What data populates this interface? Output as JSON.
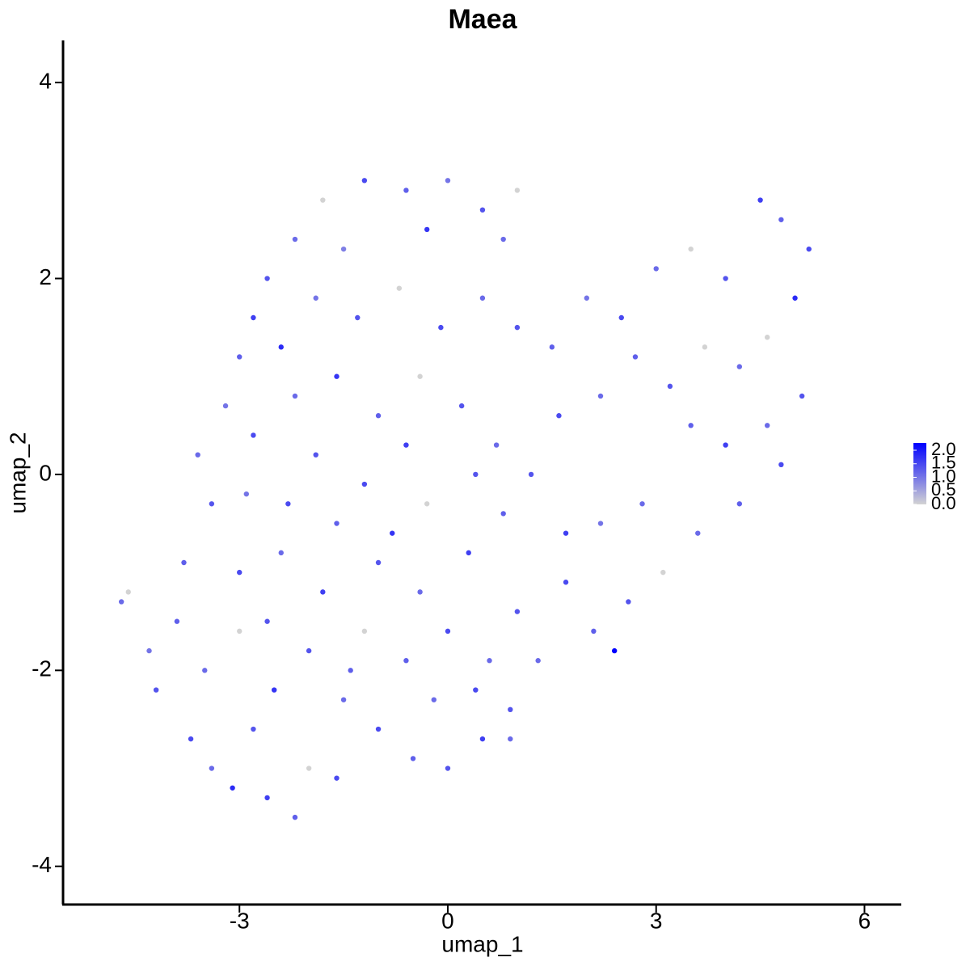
{
  "chart_data": {
    "type": "scatter",
    "title": "Maea",
    "x_label": "umap_1",
    "y_label": "umap_2",
    "xlim": [
      -5.54,
      6.53
    ],
    "ylim": [
      -4.39,
      4.43
    ],
    "xticks": [
      -3,
      0,
      3,
      6
    ],
    "yticks": [
      -4,
      -2,
      0,
      2,
      4
    ],
    "colorscale": [
      "#d3d3d3",
      "#0000ff"
    ],
    "color_lim": [
      0,
      2
    ],
    "color_ticks": [
      {
        "value": 0,
        "label": "0.0"
      },
      {
        "value": 0.5,
        "label": "0.5"
      },
      {
        "value": 1,
        "label": "1.0"
      },
      {
        "value": 1.5,
        "label": "1.5"
      },
      {
        "value": 2,
        "label": "2.0"
      }
    ],
    "x": [
      -2.6,
      -2.2,
      -1.8,
      -1.2,
      -0.6,
      0.0,
      0.5,
      1.0,
      0.8,
      -0.3,
      -1.5,
      -2.8,
      -3.0,
      -2.4,
      -1.9,
      -1.3,
      -0.7,
      -0.1,
      0.5,
      1.0,
      -3.2,
      -2.8,
      -2.2,
      -1.6,
      -1.0,
      -0.4,
      0.2,
      0.7,
      -0.6,
      -1.9,
      1.5,
      2.0,
      2.5,
      3.0,
      3.5,
      4.0,
      4.5,
      4.8,
      5.2,
      5.0,
      4.6,
      4.2,
      3.7,
      3.2,
      2.7,
      2.2,
      1.6,
      3.5,
      4.0,
      4.6,
      5.1,
      4.8,
      4.2,
      3.6,
      3.1,
      2.6,
      2.1,
      2.4,
      1.7,
      2.2,
      2.8,
      1.2,
      1.7,
      1.3,
      0.9,
      -4.7,
      -4.6,
      -4.3,
      -4.2,
      -3.9,
      -3.7,
      -3.4,
      -3.1,
      -2.8,
      -2.6,
      -2.2,
      -2.0,
      -1.6,
      -3.5,
      -3.0,
      -2.5,
      -2.0,
      -1.5,
      -1.0,
      -0.5,
      0.0,
      0.5,
      0.9,
      -3.8,
      -3.4,
      -3.0,
      -2.4,
      -1.8,
      -1.2,
      -0.6,
      0.0,
      0.6,
      1.0,
      -3.6,
      -2.9,
      -2.3,
      -1.6,
      -1.0,
      -0.4,
      0.3,
      0.8,
      -1.2,
      -0.3,
      0.4,
      -0.8,
      -2.6,
      -1.4,
      -0.2,
      0.4
    ],
    "values": [
      2.0,
      2.4,
      2.8,
      3.0,
      2.9,
      3.0,
      2.7,
      2.9,
      2.4,
      2.5,
      2.3,
      1.6,
      1.2,
      1.3,
      1.8,
      1.6,
      1.9,
      1.5,
      1.8,
      1.5,
      0.7,
      0.4,
      0.8,
      1.0,
      0.6,
      1.0,
      0.7,
      0.3,
      0.3,
      0.2,
      1.3,
      1.8,
      1.6,
      2.1,
      2.3,
      2.0,
      2.8,
      2.6,
      2.3,
      1.8,
      1.4,
      1.1,
      1.3,
      0.9,
      1.2,
      0.8,
      0.6,
      0.5,
      0.3,
      0.5,
      0.8,
      0.1,
      -0.3,
      -0.6,
      -1.0,
      -1.3,
      -1.6,
      -1.8,
      -1.1,
      -0.5,
      -0.3,
      0.0,
      -0.6,
      -1.9,
      -2.4,
      -1.3,
      -1.2,
      -1.8,
      -2.2,
      -1.5,
      -2.7,
      -3.0,
      -3.2,
      -2.6,
      -3.3,
      -3.5,
      -3.0,
      -3.1,
      -2.0,
      -1.6,
      -2.2,
      -1.8,
      -2.3,
      -2.6,
      -2.9,
      -3.0,
      -2.7,
      -2.7,
      -0.9,
      -0.3,
      -1.0,
      -0.8,
      -1.2,
      -1.6,
      -1.9,
      -1.6,
      -1.9,
      -1.4,
      0.2,
      -0.2,
      -0.3,
      -0.5,
      -0.9,
      -1.2,
      -0.8,
      -0.4,
      -0.1,
      -0.3,
      0.0,
      -0.6,
      -1.5,
      -2.0,
      -2.3,
      -2.2
    ],
    "expression": [
      1.2,
      1.0,
      0,
      1.3,
      1.1,
      0.9,
      1.2,
      0,
      1.0,
      1.5,
      0.8,
      1.4,
      1.1,
      1.6,
      0.9,
      1.2,
      0,
      1.3,
      1.0,
      1.2,
      0.9,
      1.3,
      1.0,
      1.5,
      1.1,
      0,
      1.2,
      1.0,
      1.4,
      1.2,
      1.1,
      0.9,
      1.3,
      1.0,
      0,
      1.2,
      1.4,
      1.1,
      1.3,
      1.6,
      0,
      1.0,
      0,
      1.2,
      1.1,
      1.0,
      1.3,
      1.1,
      1.4,
      1.0,
      1.2,
      1.3,
      1.1,
      1.0,
      0,
      1.2,
      1.1,
      2.0,
      1.3,
      0.9,
      1.0,
      1.2,
      1.4,
      1.0,
      1.2,
      1.0,
      0,
      0.9,
      1.2,
      1.1,
      1.3,
      1.0,
      1.6,
      1.2,
      1.4,
      1.1,
      0,
      1.3,
      1.0,
      0,
      1.5,
      1.2,
      1.0,
      1.3,
      1.1,
      1.2,
      1.4,
      1.0,
      1.1,
      1.2,
      1.3,
      1.0,
      1.4,
      0,
      1.1,
      1.3,
      1.0,
      1.2,
      1.0,
      0.9,
      1.3,
      1.1,
      1.2,
      1.0,
      1.4,
      1.1,
      1.3,
      0,
      1.2,
      1.5,
      1.2,
      1.1,
      1.0,
      1.3
    ]
  }
}
